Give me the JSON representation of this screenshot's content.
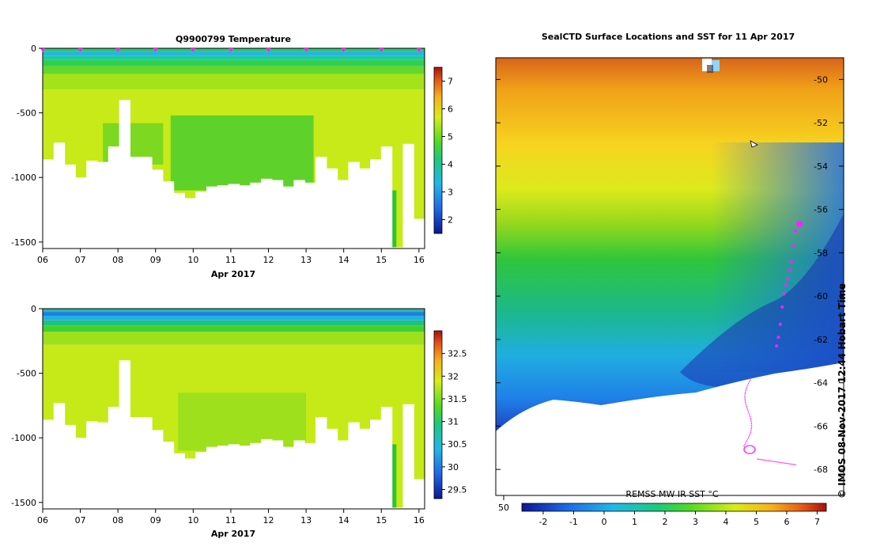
{
  "chart_data": [
    {
      "type": "heatmap",
      "title": "Q9900799  Temperature",
      "xlabel": "Apr 2017",
      "ylabel": "",
      "x_ticks": [
        "06",
        "07",
        "08",
        "09",
        "10",
        "11",
        "12",
        "13",
        "14",
        "15",
        "16"
      ],
      "xlim": [
        6.0,
        16.15
      ],
      "y_ticks": [
        "0",
        "-500",
        "-1000",
        "-1500"
      ],
      "ylim": [
        -1550,
        0
      ],
      "profile_depth_limits": [
        -860,
        -730,
        -900,
        -1000,
        -870,
        -880,
        -760,
        -400,
        -840,
        -840,
        -940,
        -1030,
        -1120,
        -1160,
        -1110,
        -1070,
        -1060,
        -1050,
        -1060,
        -1040,
        -1010,
        -1020,
        -1070,
        -1020,
        -1040,
        -840,
        -930,
        -1020,
        -880,
        -930,
        -860,
        -760,
        -1540,
        -740,
        -1320
      ],
      "colorbar": {
        "ticks": [
          "2",
          "3",
          "4",
          "5",
          "6",
          "7"
        ],
        "range": [
          1.5,
          7.5
        ]
      },
      "surface_markers": [
        "06",
        "07",
        "08",
        "09",
        "10",
        "11",
        "12",
        "13",
        "14",
        "15",
        "16"
      ]
    },
    {
      "type": "heatmap",
      "title": "",
      "xlabel": "Apr 2017",
      "ylabel": "",
      "x_ticks": [
        "06",
        "07",
        "08",
        "09",
        "10",
        "11",
        "12",
        "13",
        "14",
        "15",
        "16"
      ],
      "xlim": [
        6.0,
        16.15
      ],
      "y_ticks": [
        "0",
        "-500",
        "-1000",
        "-1500"
      ],
      "ylim": [
        -1550,
        0
      ],
      "colorbar": {
        "ticks": [
          "29.5",
          "30",
          "30.5",
          "31",
          "31.5",
          "32",
          "32.5"
        ],
        "range": [
          29.3,
          33.0
        ]
      }
    },
    {
      "type": "heatmap",
      "title": "SealCTD Surface Locations and SST for 11 Apr 2017",
      "y_ticks": [
        "-50",
        "-52",
        "-54",
        "-56",
        "-58",
        "-60",
        "-62",
        "-64",
        "-66",
        "-68"
      ],
      "ylim": [
        -69.2,
        -49.0
      ],
      "x_tick_left": "50",
      "colorbar": {
        "label": "REMSS MW IR SST °C",
        "ticks": [
          "-2",
          "-1",
          "0",
          "1",
          "2",
          "3",
          "4",
          "5",
          "6",
          "7"
        ],
        "range": [
          -2.7,
          7.3
        ]
      },
      "track_points_latitude": [
        -57.0,
        -57.7,
        -58.4,
        -58.8,
        -59.2,
        -59.5,
        -59.9,
        -60.5,
        -61.3,
        -61.9,
        -62.3
      ]
    }
  ],
  "watermark": "©  IMOS 08-Nov-2017 12:44 Hobart Time"
}
